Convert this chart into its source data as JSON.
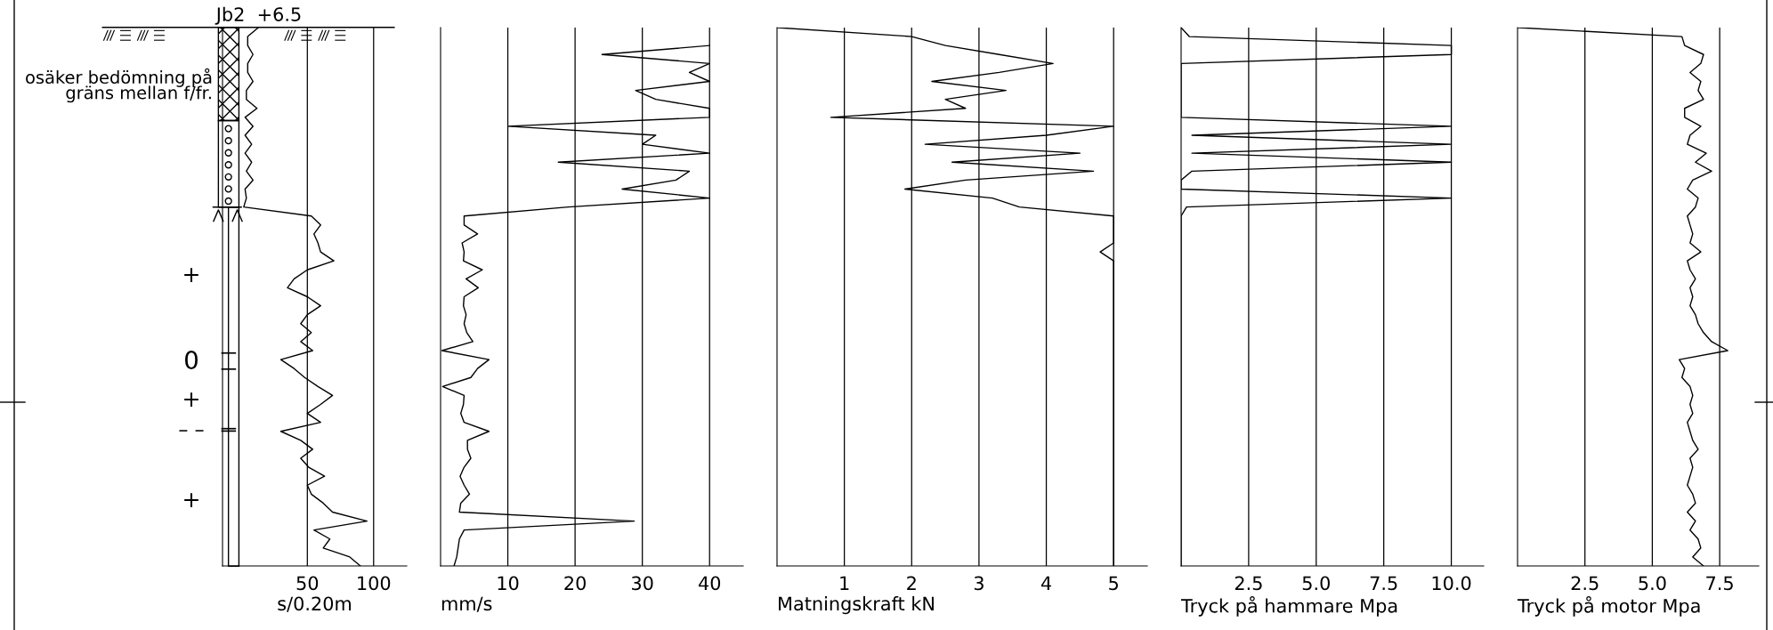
{
  "chart_data": [
    {
      "type": "line",
      "orientation": "horizontal",
      "title": "Jb2  +6.5",
      "xlabel": "s/0.20m",
      "xlim": [
        -14,
        125
      ],
      "xticks": [
        50,
        100
      ],
      "grid": "x",
      "marker": "none",
      "line_style": "solid",
      "annotations": [
        "osäker bedömning på\ngräns mellan f/fr.",
        "+",
        "0",
        "+",
        "– –",
        "+"
      ],
      "categories": [
        null,
        null,
        null,
        null,
        null,
        null,
        null,
        null,
        null,
        null,
        null,
        null,
        null,
        null,
        null,
        null,
        null,
        null,
        null,
        null,
        null,
        null,
        null,
        null,
        null,
        null,
        null,
        null,
        null,
        null,
        null,
        null,
        null,
        null,
        null,
        null,
        null,
        null,
        null,
        null,
        null,
        null,
        null,
        null,
        null,
        null,
        null,
        null,
        null,
        null,
        null,
        null,
        null,
        null,
        null,
        null,
        null,
        null,
        null,
        null,
        null
      ],
      "series": [
        {
          "color": "#000000",
          "values": [
            13,
            5,
            5,
            9,
            5,
            5,
            9,
            4,
            4,
            12,
            3,
            9,
            3,
            8,
            3,
            8,
            4,
            9,
            3,
            4,
            2,
            53,
            60,
            55,
            58,
            60,
            70,
            50,
            40,
            35,
            50,
            60,
            50,
            45,
            53,
            45,
            54,
            30,
            40,
            48,
            58,
            69,
            60,
            50,
            60,
            30,
            45,
            54,
            45,
            51,
            63,
            50,
            53,
            62,
            69,
            95,
            55,
            67,
            62,
            82,
            90
          ]
        }
      ]
    },
    {
      "type": "line",
      "orientation": "horizontal",
      "xlabel": "mm/s",
      "xlim": [
        0,
        45
      ],
      "xticks": [
        10,
        20,
        30,
        40
      ],
      "grid": "x",
      "marker": "none",
      "line_style": "solid",
      "categories": [
        null,
        null,
        null,
        null,
        null,
        null,
        null,
        null,
        null,
        null,
        null,
        null,
        null,
        null,
        null,
        null,
        null,
        null,
        null,
        null,
        null,
        null,
        null,
        null,
        null,
        null,
        null,
        null,
        null,
        null,
        null,
        null,
        null,
        null,
        null,
        null,
        null,
        null,
        null,
        null,
        null,
        null,
        null,
        null,
        null,
        null,
        null,
        null,
        null,
        null,
        null,
        null,
        null,
        null,
        null,
        null,
        null,
        null,
        null,
        null,
        null
      ],
      "series": [
        {
          "color": "#000000",
          "values": [
            null,
            null,
            40,
            24,
            40,
            37,
            40,
            29,
            32,
            40,
            40,
            10,
            32,
            30,
            40,
            17.5,
            37,
            35,
            27,
            40,
            19,
            3.5,
            3.5,
            5.5,
            3.2,
            3.5,
            3.4,
            6.2,
            3.8,
            5.6,
            3.5,
            3.4,
            3.8,
            3.5,
            3.9,
            4.8,
            0.2,
            7.2,
            5.5,
            4.5,
            0.3,
            3.5,
            3.4,
            3.0,
            3.5,
            7.2,
            4.0,
            4.0,
            4.5,
            3.5,
            2.9,
            3.5,
            4.3,
            3.0,
            2.8,
            28.8,
            3.5,
            2.8,
            2.6,
            2.4,
            2.0
          ]
        }
      ]
    },
    {
      "type": "line",
      "orientation": "horizontal",
      "xlabel": "Matningskraft kN",
      "xlim": [
        0,
        5.5
      ],
      "xticks": [
        1,
        2,
        3,
        4,
        5
      ],
      "grid": "x",
      "marker": "none",
      "line_style": "solid",
      "categories": [
        null,
        null,
        null,
        null,
        null,
        null,
        null,
        null,
        null,
        null,
        null,
        null,
        null,
        null,
        null,
        null,
        null,
        null,
        null,
        null,
        null,
        null,
        null,
        null,
        null,
        null,
        null,
        null,
        null,
        null,
        null,
        null,
        null,
        null,
        null,
        null,
        null,
        null,
        null,
        null,
        null,
        null,
        null,
        null,
        null,
        null,
        null,
        null,
        null,
        null,
        null,
        null,
        null,
        null,
        null,
        null,
        null,
        null,
        null,
        null,
        null
      ],
      "series": [
        {
          "color": "#000000",
          "values": [
            0,
            2.0,
            2.5,
            3.3,
            4.1,
            3.3,
            2.3,
            3.4,
            2.5,
            2.8,
            0.8,
            5.0,
            4.0,
            2.2,
            4.5,
            2.6,
            4.7,
            2.8,
            1.9,
            3.2,
            3.6,
            5.0,
            5.0,
            5.0,
            5.0,
            4.8,
            5.0,
            5.0,
            5.0,
            5.0,
            5.0,
            5.0,
            5.0,
            5.0,
            5.0,
            5.0,
            5.0,
            5.0,
            5.0,
            5.0,
            5.0,
            5.0,
            5.0,
            5.0,
            5.0,
            5.0,
            5.0,
            5.0,
            5.0,
            5.0,
            5.0,
            5.0,
            5.0,
            5.0,
            5.0,
            5.0,
            5.0,
            5.0,
            5.0,
            5.0,
            5.0
          ]
        }
      ]
    },
    {
      "type": "line",
      "orientation": "horizontal",
      "xlabel": "Tryck på hammare Mpa",
      "xlim": [
        0,
        11.2
      ],
      "xticks": [
        {
          "value": 2.5,
          "label": "2.5"
        },
        {
          "value": 5,
          "label": "5.0"
        },
        {
          "value": 7.5,
          "label": "7.5"
        },
        {
          "value": 10,
          "label": "10.0"
        }
      ],
      "grid": "x",
      "marker": "none",
      "line_style": "solid",
      "categories": [
        null,
        null,
        null,
        null,
        null,
        null,
        null,
        null,
        null,
        null,
        null,
        null,
        null,
        null,
        null,
        null,
        null,
        null,
        null,
        null,
        null,
        null,
        null,
        null,
        null,
        null,
        null,
        null,
        null,
        null,
        null,
        null,
        null,
        null,
        null,
        null,
        null,
        null,
        null,
        null,
        null,
        null,
        null,
        null,
        null,
        null,
        null,
        null,
        null,
        null,
        null,
        null,
        null,
        null,
        null,
        null,
        null,
        null,
        null,
        null,
        null
      ],
      "series": [
        {
          "color": "#000000",
          "values": [
            0,
            0.3,
            10,
            10,
            0,
            0,
            0,
            0,
            0,
            0,
            0,
            10,
            0.4,
            10,
            0.4,
            10,
            0.4,
            0,
            0,
            10,
            0.2,
            0,
            0,
            0,
            0,
            0,
            0,
            0,
            0,
            0,
            0,
            0,
            0,
            0,
            0,
            0,
            0,
            0,
            0,
            0,
            0,
            0,
            0,
            0,
            0,
            0,
            0,
            0,
            0,
            0,
            0,
            0,
            0,
            0,
            0,
            0,
            0,
            0,
            0,
            0,
            0
          ]
        }
      ]
    },
    {
      "type": "line",
      "orientation": "horizontal",
      "xlabel": "Tryck på motor Mpa",
      "xlim": [
        0,
        8.95
      ],
      "xticks": [
        {
          "value": 2.5,
          "label": "2.5"
        },
        {
          "value": 5,
          "label": "5.0"
        },
        {
          "value": 7.5,
          "label": "7.5"
        }
      ],
      "grid": "x",
      "marker": "none",
      "line_style": "solid",
      "categories": [
        null,
        null,
        null,
        null,
        null,
        null,
        null,
        null,
        null,
        null,
        null,
        null,
        null,
        null,
        null,
        null,
        null,
        null,
        null,
        null,
        null,
        null,
        null,
        null,
        null,
        null,
        null,
        null,
        null,
        null,
        null,
        null,
        null,
        null,
        null,
        null,
        null,
        null,
        null,
        null,
        null,
        null,
        null,
        null,
        null,
        null,
        null,
        null,
        null,
        null,
        null,
        null,
        null,
        null,
        null,
        null,
        null,
        null,
        null,
        null,
        null
      ],
      "series": [
        {
          "color": "#000000",
          "values": [
            0,
            6.1,
            6.2,
            6.9,
            6.8,
            6.4,
            6.8,
            6.7,
            6.9,
            6.2,
            6.2,
            6.8,
            6.4,
            6.3,
            7.0,
            6.6,
            7.2,
            6.5,
            6.3,
            6.7,
            6.6,
            6.3,
            6.4,
            6.5,
            6.4,
            6.8,
            6.3,
            6.4,
            6.6,
            6.4,
            6.5,
            6.4,
            6.6,
            6.7,
            6.9,
            7.2,
            7.8,
            6.0,
            6.2,
            6.1,
            6.4,
            6.5,
            6.4,
            6.5,
            6.3,
            6.4,
            6.5,
            6.7,
            6.4,
            6.5,
            6.4,
            6.3,
            6.5,
            6.6,
            6.3,
            6.6,
            6.4,
            6.7,
            6.8,
            6.5,
            6.9
          ]
        }
      ]
    }
  ]
}
